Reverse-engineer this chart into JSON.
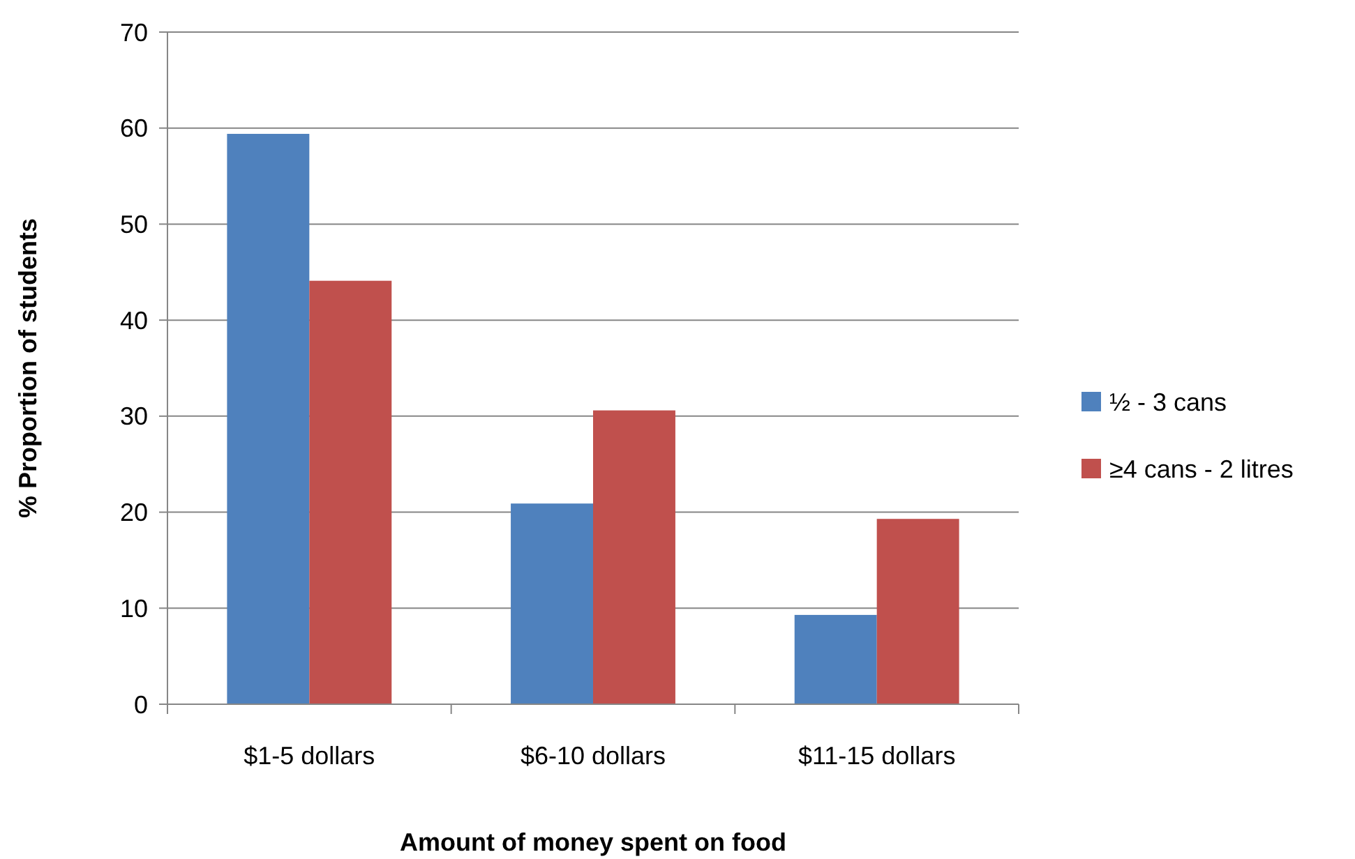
{
  "chart_data": {
    "type": "bar",
    "xlabel": "Amount of money spent on food",
    "ylabel": "% Proportion of students",
    "categories": [
      "$1-5 dollars",
      "$6-10 dollars",
      "$11-15 dollars"
    ],
    "series": [
      {
        "name": "½ - 3 cans",
        "color": "#4f81bd",
        "values": [
          59.4,
          20.9,
          9.3
        ]
      },
      {
        "name": "≥4 cans - 2 litres",
        "color": "#c0504d",
        "values": [
          44.1,
          30.6,
          19.3
        ]
      }
    ],
    "ylim": [
      0,
      70
    ],
    "yticks": [
      0,
      10,
      20,
      30,
      40,
      50,
      60,
      70
    ],
    "grid": "y",
    "legend": "right"
  }
}
